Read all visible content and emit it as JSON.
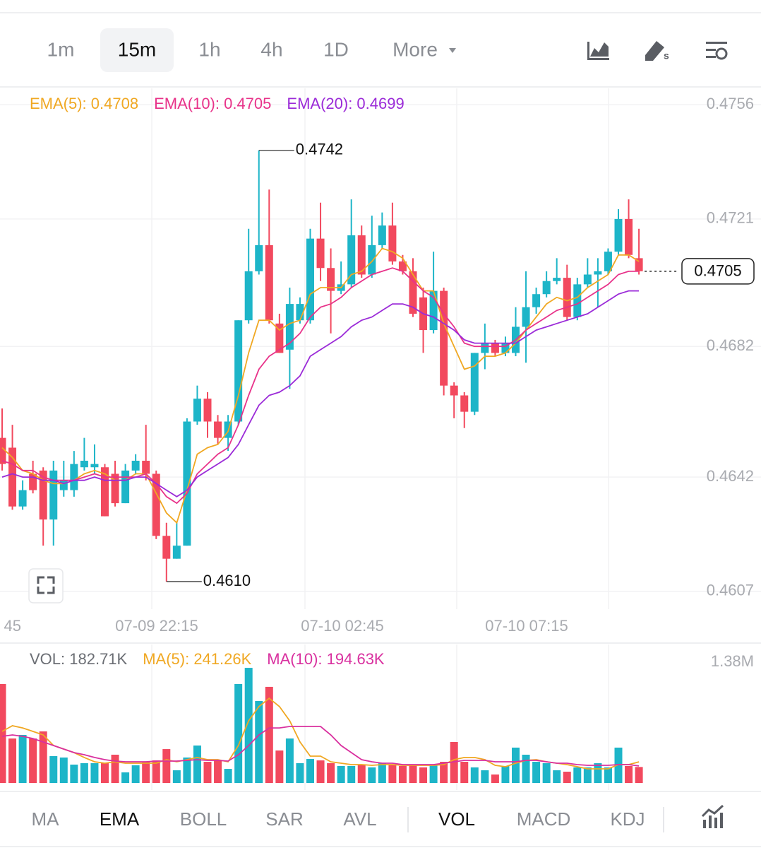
{
  "toolbar": {
    "intervals": [
      "1m",
      "15m",
      "1h",
      "4h",
      "1D"
    ],
    "selected": 1,
    "more": "More"
  },
  "chart_data": [
    {
      "type": "candlestick",
      "up_color": "#1db5c8",
      "down_color": "#f2495e",
      "ylim": [
        0.4602,
        0.4761
      ],
      "yticks": [
        0.4756,
        0.4721,
        0.4682,
        0.4642,
        0.4607
      ],
      "grid": true,
      "xtick_labels": [
        "45",
        "07-09 22:15",
        "07-10 02:45",
        "07-10 07:15"
      ],
      "open": [
        0.4654,
        0.4651,
        0.4633,
        0.4643,
        0.4644,
        0.4629,
        0.4638,
        0.4638,
        0.4645,
        0.4645,
        0.4645,
        0.4643,
        0.4634,
        0.4644,
        0.4647,
        0.4643,
        0.4624,
        0.4617,
        0.4621,
        0.4659,
        0.4666,
        0.4659,
        0.4654,
        0.4659,
        0.469,
        0.4705,
        0.4713,
        0.4689,
        0.4681,
        0.469,
        0.469,
        0.4715,
        0.4706,
        0.4699,
        0.4701,
        0.4716,
        0.4704,
        0.4713,
        0.4719,
        0.4708,
        0.4705,
        0.4697,
        0.4687,
        0.4699,
        0.467,
        0.4667,
        0.4662,
        0.468,
        0.4683,
        0.468,
        0.468,
        0.4688,
        0.4694,
        0.4698,
        0.4702,
        0.4703,
        0.4691,
        0.4701,
        0.4704,
        0.4705,
        0.4711,
        0.4721,
        0.4709
      ],
      "high": [
        0.4663,
        0.4658,
        0.4641,
        0.4647,
        0.4645,
        0.4647,
        0.4647,
        0.465,
        0.4654,
        0.4652,
        0.4646,
        0.4647,
        0.4646,
        0.4649,
        0.4658,
        0.4644,
        0.4628,
        0.4628,
        0.466,
        0.467,
        0.4668,
        0.4661,
        0.4661,
        0.469,
        0.4718,
        0.4742,
        0.473,
        0.4692,
        0.47,
        0.4697,
        0.4718,
        0.4726,
        0.4712,
        0.4708,
        0.4727,
        0.4719,
        0.4722,
        0.4723,
        0.4726,
        0.471,
        0.4709,
        0.47,
        0.4711,
        0.47,
        0.4671,
        0.4668,
        0.468,
        0.4689,
        0.4684,
        0.4685,
        0.4694,
        0.4705,
        0.47,
        0.4705,
        0.4709,
        0.4707,
        0.4703,
        0.4709,
        0.4709,
        0.4712,
        0.4724,
        0.4727,
        0.4718
      ],
      "low": [
        0.4644,
        0.4632,
        0.4632,
        0.4637,
        0.4621,
        0.4621,
        0.4636,
        0.4636,
        0.4644,
        0.4643,
        0.463,
        0.4633,
        0.4634,
        0.4643,
        0.4641,
        0.4623,
        0.461,
        0.4617,
        0.4621,
        0.4658,
        0.4654,
        0.4652,
        0.465,
        0.4658,
        0.4689,
        0.4704,
        0.4689,
        0.468,
        0.4669,
        0.4689,
        0.4689,
        0.4702,
        0.4686,
        0.4698,
        0.47,
        0.4703,
        0.4703,
        0.4712,
        0.4707,
        0.4704,
        0.4691,
        0.468,
        0.4686,
        0.4667,
        0.466,
        0.4657,
        0.4661,
        0.4675,
        0.4679,
        0.4679,
        0.4679,
        0.4677,
        0.4692,
        0.4697,
        0.4701,
        0.469,
        0.469,
        0.47,
        0.4694,
        0.4704,
        0.471,
        0.4709,
        0.4704
      ],
      "close": [
        0.4646,
        0.4633,
        0.4638,
        0.4638,
        0.4629,
        0.4644,
        0.4641,
        0.4646,
        0.4647,
        0.4646,
        0.463,
        0.4634,
        0.4644,
        0.4647,
        0.4643,
        0.4624,
        0.4617,
        0.4621,
        0.4659,
        0.4666,
        0.4659,
        0.4654,
        0.4659,
        0.469,
        0.4705,
        0.4713,
        0.469,
        0.468,
        0.4695,
        0.4695,
        0.4715,
        0.4706,
        0.4699,
        0.4701,
        0.4716,
        0.4704,
        0.4713,
        0.4719,
        0.4708,
        0.4705,
        0.4692,
        0.4687,
        0.4699,
        0.467,
        0.4667,
        0.4662,
        0.468,
        0.4683,
        0.468,
        0.4683,
        0.4688,
        0.4694,
        0.4698,
        0.4702,
        0.4703,
        0.4691,
        0.4701,
        0.4704,
        0.4705,
        0.4711,
        0.4721,
        0.471,
        0.4705
      ],
      "lines": [
        {
          "name": "EMA(5): 0.4708",
          "color": "#f0a823",
          "values": [
            0.4651,
            0.4648,
            0.4644,
            0.4643,
            0.4641,
            0.464,
            0.464,
            0.4641,
            0.4643,
            0.4644,
            0.4643,
            0.4641,
            0.4641,
            0.4643,
            0.4643,
            0.4637,
            0.4631,
            0.4628,
            0.4638,
            0.4649,
            0.4651,
            0.4652,
            0.4656,
            0.4667,
            0.468,
            0.469,
            0.469,
            0.4687,
            0.4689,
            0.469,
            0.4698,
            0.47,
            0.47,
            0.47,
            0.4704,
            0.4705,
            0.4708,
            0.4712,
            0.4711,
            0.4709,
            0.4704,
            0.4699,
            0.4699,
            0.4689,
            0.4682,
            0.4675,
            0.4676,
            0.4679,
            0.4679,
            0.468,
            0.4683,
            0.4687,
            0.4691,
            0.4695,
            0.4697,
            0.4696,
            0.4697,
            0.47,
            0.4702,
            0.4704,
            0.471,
            0.471,
            0.4708
          ]
        },
        {
          "name": "EMA(10): 0.4705",
          "color": "#e8338a",
          "values": [
            0.4647,
            0.4646,
            0.4644,
            0.4644,
            0.4642,
            0.4641,
            0.4641,
            0.4641,
            0.4642,
            0.4643,
            0.4642,
            0.4642,
            0.4642,
            0.4642,
            0.4643,
            0.464,
            0.4636,
            0.4634,
            0.4637,
            0.4643,
            0.4646,
            0.4649,
            0.4651,
            0.4658,
            0.4667,
            0.4675,
            0.4679,
            0.4681,
            0.4683,
            0.4686,
            0.4691,
            0.4694,
            0.4695,
            0.4697,
            0.47,
            0.4702,
            0.4704,
            0.4705,
            0.4706,
            0.4705,
            0.4702,
            0.4699,
            0.4697,
            0.4692,
            0.4688,
            0.4683,
            0.4682,
            0.4682,
            0.4682,
            0.4682,
            0.4684,
            0.4687,
            0.4689,
            0.4691,
            0.4693,
            0.4694,
            0.4695,
            0.4697,
            0.4699,
            0.4701,
            0.4704,
            0.4705,
            0.4705
          ]
        },
        {
          "name": "EMA(20): 0.4699",
          "color": "#9b2bd8",
          "values": [
            0.4642,
            0.4643,
            0.4642,
            0.4642,
            0.4641,
            0.4641,
            0.464,
            0.4641,
            0.4641,
            0.4642,
            0.4641,
            0.4641,
            0.4641,
            0.4642,
            0.4642,
            0.464,
            0.4638,
            0.4636,
            0.4638,
            0.4642,
            0.4644,
            0.4646,
            0.4648,
            0.4652,
            0.4658,
            0.4664,
            0.4667,
            0.4668,
            0.467,
            0.4673,
            0.4679,
            0.4681,
            0.4683,
            0.4685,
            0.4688,
            0.469,
            0.4691,
            0.4693,
            0.4695,
            0.4695,
            0.4694,
            0.4692,
            0.4691,
            0.4689,
            0.4687,
            0.4684,
            0.4683,
            0.4683,
            0.4683,
            0.4683,
            0.4683,
            0.4685,
            0.4687,
            0.4688,
            0.4689,
            0.469,
            0.4691,
            0.4692,
            0.4694,
            0.4696,
            0.4698,
            0.4699,
            0.4699
          ]
        }
      ],
      "max_label": "0.4742",
      "min_label": "0.4610",
      "last_price": "0.4705"
    },
    {
      "type": "bar",
      "ylim": [
        0,
        1380000
      ],
      "yticks": [
        {
          "value": 1380000,
          "label": "1.38M"
        }
      ],
      "legend": "VOL: 182.71K",
      "values": [
        1130000,
        508000,
        549000,
        508000,
        589000,
        307000,
        291000,
        210000,
        226000,
        226000,
        226000,
        323000,
        121000,
        202000,
        242000,
        258000,
        387000,
        145000,
        291000,
        428000,
        242000,
        258000,
        161000,
        1130000,
        1315000,
        936000,
        1098000,
        371000,
        508000,
        226000,
        274000,
        258000,
        226000,
        194000,
        194000,
        210000,
        178000,
        226000,
        210000,
        194000,
        210000,
        178000,
        210000,
        242000,
        468000,
        242000,
        178000,
        145000,
        97000,
        194000,
        404000,
        323000,
        242000,
        226000,
        145000,
        129000,
        178000,
        178000,
        226000,
        178000,
        404000,
        194000,
        182710
      ],
      "lines": [
        {
          "name": "MA(5): 241.26K",
          "color": "#f0a823",
          "values": [
            589000,
            654000,
            629000,
            589000,
            549000,
            428000,
            387000,
            347000,
            291000,
            242000,
            226000,
            242000,
            226000,
            226000,
            226000,
            226000,
            266000,
            242000,
            266000,
            291000,
            266000,
            266000,
            242000,
            428000,
            710000,
            872000,
            968000,
            872000,
            710000,
            468000,
            307000,
            307000,
            242000,
            226000,
            210000,
            210000,
            202000,
            210000,
            210000,
            202000,
            202000,
            202000,
            202000,
            210000,
            266000,
            291000,
            291000,
            266000,
            202000,
            186000,
            226000,
            258000,
            266000,
            242000,
            226000,
            210000,
            186000,
            161000,
            161000,
            161000,
            210000,
            210000,
            241260
          ]
        },
        {
          "name": "MA(10): 194.63K",
          "color": "#d9309f",
          "values": [
            533000,
            549000,
            533000,
            508000,
            468000,
            428000,
            387000,
            347000,
            323000,
            291000,
            266000,
            250000,
            242000,
            242000,
            242000,
            250000,
            250000,
            250000,
            258000,
            266000,
            258000,
            258000,
            250000,
            323000,
            428000,
            549000,
            629000,
            629000,
            646000,
            646000,
            646000,
            646000,
            549000,
            428000,
            347000,
            266000,
            242000,
            226000,
            226000,
            210000,
            210000,
            210000,
            210000,
            226000,
            242000,
            258000,
            258000,
            258000,
            242000,
            242000,
            242000,
            258000,
            258000,
            242000,
            226000,
            226000,
            210000,
            202000,
            202000,
            202000,
            210000,
            210000,
            194630
          ]
        }
      ]
    }
  ],
  "indicator_tabs": [
    "MA",
    "EMA",
    "BOLL",
    "SAR",
    "AVL",
    "VOL",
    "MACD",
    "KDJ"
  ],
  "active_tabs": [
    1,
    5
  ]
}
